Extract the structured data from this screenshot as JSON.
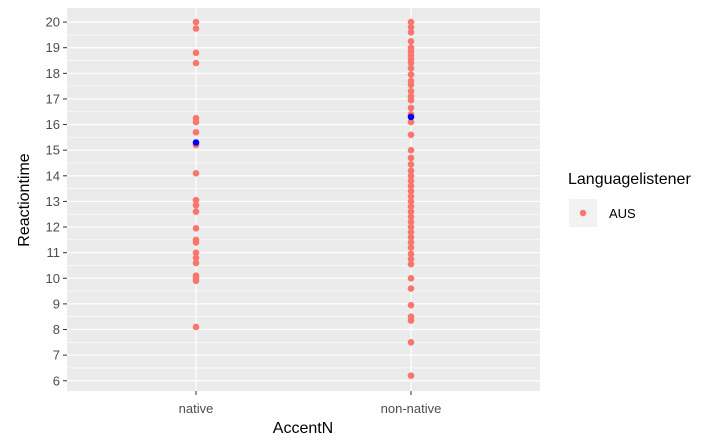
{
  "chart_data": {
    "type": "scatter",
    "xlabel": "AccentN",
    "ylabel": "Reactiontime",
    "categories": [
      "native",
      "non-native"
    ],
    "ylim": [
      5.6,
      20.55
    ],
    "yticks": [
      6,
      7,
      8,
      9,
      10,
      11,
      12,
      13,
      14,
      15,
      16,
      17,
      18,
      19,
      20
    ],
    "grid": true,
    "legend": {
      "title": "Languagelistener",
      "position": "right",
      "entries": [
        {
          "label": "AUS",
          "color": "#F8766D"
        }
      ]
    },
    "series": [
      {
        "name": "AUS",
        "color": "#F8766D",
        "points": [
          {
            "x": "native",
            "y": 20.0
          },
          {
            "x": "native",
            "y": 19.75
          },
          {
            "x": "native",
            "y": 18.8
          },
          {
            "x": "native",
            "y": 18.4
          },
          {
            "x": "native",
            "y": 16.25
          },
          {
            "x": "native",
            "y": 16.1
          },
          {
            "x": "native",
            "y": 15.7
          },
          {
            "x": "native",
            "y": 15.2
          },
          {
            "x": "native",
            "y": 14.1
          },
          {
            "x": "native",
            "y": 13.05
          },
          {
            "x": "native",
            "y": 12.85
          },
          {
            "x": "native",
            "y": 12.6
          },
          {
            "x": "native",
            "y": 11.95
          },
          {
            "x": "native",
            "y": 11.5
          },
          {
            "x": "native",
            "y": 11.4
          },
          {
            "x": "native",
            "y": 11.0
          },
          {
            "x": "native",
            "y": 10.8
          },
          {
            "x": "native",
            "y": 10.6
          },
          {
            "x": "native",
            "y": 10.1
          },
          {
            "x": "native",
            "y": 10.0
          },
          {
            "x": "native",
            "y": 9.9
          },
          {
            "x": "native",
            "y": 8.1
          },
          {
            "x": "non-native",
            "y": 20.0
          },
          {
            "x": "non-native",
            "y": 19.8
          },
          {
            "x": "non-native",
            "y": 19.6
          },
          {
            "x": "non-native",
            "y": 19.25
          },
          {
            "x": "non-native",
            "y": 19.0
          },
          {
            "x": "non-native",
            "y": 18.85
          },
          {
            "x": "non-native",
            "y": 18.7
          },
          {
            "x": "non-native",
            "y": 18.55
          },
          {
            "x": "non-native",
            "y": 18.4
          },
          {
            "x": "non-native",
            "y": 18.2
          },
          {
            "x": "non-native",
            "y": 17.95
          },
          {
            "x": "non-native",
            "y": 17.7
          },
          {
            "x": "non-native",
            "y": 17.55
          },
          {
            "x": "non-native",
            "y": 17.3
          },
          {
            "x": "non-native",
            "y": 17.1
          },
          {
            "x": "non-native",
            "y": 16.95
          },
          {
            "x": "non-native",
            "y": 16.65
          },
          {
            "x": "non-native",
            "y": 16.4
          },
          {
            "x": "non-native",
            "y": 16.1
          },
          {
            "x": "non-native",
            "y": 15.6
          },
          {
            "x": "non-native",
            "y": 15.0
          },
          {
            "x": "non-native",
            "y": 14.7
          },
          {
            "x": "non-native",
            "y": 14.45
          },
          {
            "x": "non-native",
            "y": 14.2
          },
          {
            "x": "non-native",
            "y": 14.0
          },
          {
            "x": "non-native",
            "y": 13.8
          },
          {
            "x": "non-native",
            "y": 13.6
          },
          {
            "x": "non-native",
            "y": 13.4
          },
          {
            "x": "non-native",
            "y": 13.2
          },
          {
            "x": "non-native",
            "y": 13.0
          },
          {
            "x": "non-native",
            "y": 12.8
          },
          {
            "x": "non-native",
            "y": 12.6
          },
          {
            "x": "non-native",
            "y": 12.4
          },
          {
            "x": "non-native",
            "y": 12.2
          },
          {
            "x": "non-native",
            "y": 12.0
          },
          {
            "x": "non-native",
            "y": 11.8
          },
          {
            "x": "non-native",
            "y": 11.6
          },
          {
            "x": "non-native",
            "y": 11.4
          },
          {
            "x": "non-native",
            "y": 11.2
          },
          {
            "x": "non-native",
            "y": 10.95
          },
          {
            "x": "non-native",
            "y": 10.75
          },
          {
            "x": "non-native",
            "y": 10.55
          },
          {
            "x": "non-native",
            "y": 10.0
          },
          {
            "x": "non-native",
            "y": 9.6
          },
          {
            "x": "non-native",
            "y": 8.95
          },
          {
            "x": "non-native",
            "y": 8.5
          },
          {
            "x": "non-native",
            "y": 8.35
          },
          {
            "x": "non-native",
            "y": 7.5
          },
          {
            "x": "non-native",
            "y": 6.2
          }
        ]
      },
      {
        "color": "#0000FF",
        "points": [
          {
            "x": "native",
            "y": 15.3
          },
          {
            "x": "non-native",
            "y": 16.3
          }
        ]
      }
    ]
  }
}
